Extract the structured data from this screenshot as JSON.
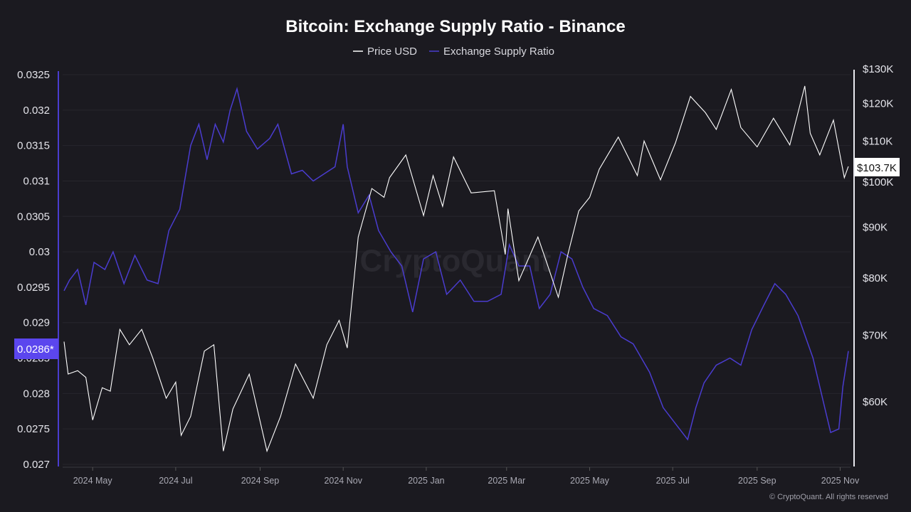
{
  "chart_data": {
    "type": "line",
    "title": "Bitcoin: Exchange Supply Ratio - Binance",
    "watermark": "CryptoQuant",
    "footer": "© CryptoQuant. All rights reserved",
    "legend_position": "top-center",
    "grid": true,
    "colors": {
      "price": "#ffffff",
      "ratio": "#4a3ccf",
      "ratio_badge": "#5b46ee",
      "background": "#1b1a20"
    },
    "x_range": [
      "2024-04-10",
      "2025-11-07"
    ],
    "x_ticks": [
      {
        "date": "2024-05-01",
        "label": "2024 May"
      },
      {
        "date": "2024-07-01",
        "label": "2024 Jul"
      },
      {
        "date": "2024-09-01",
        "label": "2024 Sep"
      },
      {
        "date": "2024-11-01",
        "label": "2024 Nov"
      },
      {
        "date": "2025-01-01",
        "label": "2025 Jan"
      },
      {
        "date": "2025-03-01",
        "label": "2025 Mar"
      },
      {
        "date": "2025-05-01",
        "label": "2025 May"
      },
      {
        "date": "2025-07-01",
        "label": "2025 Jul"
      },
      {
        "date": "2025-09-01",
        "label": "2025 Sep"
      },
      {
        "date": "2025-11-01",
        "label": "2025 Nov"
      }
    ],
    "left_axis": {
      "scale": "linear",
      "ylim": [
        0.027,
        0.0325
      ],
      "ticks": [
        {
          "v": 0.0325,
          "label": "0.0325"
        },
        {
          "v": 0.032,
          "label": "0.032"
        },
        {
          "v": 0.0315,
          "label": "0.0315"
        },
        {
          "v": 0.031,
          "label": "0.031"
        },
        {
          "v": 0.0305,
          "label": "0.0305"
        },
        {
          "v": 0.03,
          "label": "0.03"
        },
        {
          "v": 0.0295,
          "label": "0.0295"
        },
        {
          "v": 0.029,
          "label": "0.029"
        },
        {
          "v": 0.0285,
          "label": "0.0285"
        },
        {
          "v": 0.028,
          "label": "0.028"
        },
        {
          "v": 0.0275,
          "label": "0.0275"
        },
        {
          "v": 0.027,
          "label": "0.027"
        }
      ],
      "current_label": "0.0286*",
      "current_value": 0.0286
    },
    "right_axis": {
      "scale": "log",
      "ylim": [
        51500,
        130000
      ],
      "ticks": [
        {
          "v": 130000,
          "label": "$130K"
        },
        {
          "v": 120000,
          "label": "$120K"
        },
        {
          "v": 110000,
          "label": "$110K"
        },
        {
          "v": 100000,
          "label": "$100K"
        },
        {
          "v": 90000,
          "label": "$90K"
        },
        {
          "v": 80000,
          "label": "$80K"
        },
        {
          "v": 70000,
          "label": "$70K"
        },
        {
          "v": 60000,
          "label": "$60K"
        }
      ],
      "current_label": "$103.7K",
      "current_value": 103700
    },
    "series": [
      {
        "name": "Price USD",
        "axis": "right",
        "points": [
          [
            "2024-04-10",
            69000
          ],
          [
            "2024-04-13",
            64000
          ],
          [
            "2024-04-20",
            64500
          ],
          [
            "2024-04-26",
            63500
          ],
          [
            "2024-05-01",
            57500
          ],
          [
            "2024-05-08",
            62000
          ],
          [
            "2024-05-14",
            61500
          ],
          [
            "2024-05-21",
            71000
          ],
          [
            "2024-05-28",
            68500
          ],
          [
            "2024-06-06",
            71000
          ],
          [
            "2024-06-14",
            66500
          ],
          [
            "2024-06-24",
            60500
          ],
          [
            "2024-07-01",
            62800
          ],
          [
            "2024-07-05",
            55500
          ],
          [
            "2024-07-12",
            58000
          ],
          [
            "2024-07-22",
            67500
          ],
          [
            "2024-07-29",
            68500
          ],
          [
            "2024-08-05",
            53500
          ],
          [
            "2024-08-12",
            59000
          ],
          [
            "2024-08-24",
            64000
          ],
          [
            "2024-09-06",
            53500
          ],
          [
            "2024-09-16",
            58000
          ],
          [
            "2024-09-27",
            65500
          ],
          [
            "2024-10-10",
            60500
          ],
          [
            "2024-10-20",
            68500
          ],
          [
            "2024-10-29",
            72500
          ],
          [
            "2024-11-04",
            68000
          ],
          [
            "2024-11-12",
            88000
          ],
          [
            "2024-11-22",
            98500
          ],
          [
            "2024-12-01",
            96500
          ],
          [
            "2024-12-05",
            101000
          ],
          [
            "2024-12-17",
            106500
          ],
          [
            "2024-12-30",
            92500
          ],
          [
            "2025-01-06",
            101500
          ],
          [
            "2025-01-13",
            94500
          ],
          [
            "2025-01-21",
            106000
          ],
          [
            "2025-02-03",
            97500
          ],
          [
            "2025-02-20",
            98000
          ],
          [
            "2025-02-28",
            84500
          ],
          [
            "2025-03-02",
            94000
          ],
          [
            "2025-03-10",
            79500
          ],
          [
            "2025-03-24",
            88000
          ],
          [
            "2025-03-31",
            82500
          ],
          [
            "2025-04-08",
            76500
          ],
          [
            "2025-04-15",
            84500
          ],
          [
            "2025-04-23",
            93500
          ],
          [
            "2025-05-01",
            96500
          ],
          [
            "2025-05-08",
            103000
          ],
          [
            "2025-05-22",
            111000
          ],
          [
            "2025-06-05",
            101500
          ],
          [
            "2025-06-10",
            110000
          ],
          [
            "2025-06-22",
            100500
          ],
          [
            "2025-07-03",
            109500
          ],
          [
            "2025-07-14",
            122000
          ],
          [
            "2025-07-25",
            117500
          ],
          [
            "2025-08-02",
            113000
          ],
          [
            "2025-08-13",
            124000
          ],
          [
            "2025-08-20",
            113500
          ],
          [
            "2025-09-01",
            108500
          ],
          [
            "2025-09-13",
            116000
          ],
          [
            "2025-09-25",
            109000
          ],
          [
            "2025-10-06",
            125000
          ],
          [
            "2025-10-10",
            112000
          ],
          [
            "2025-10-17",
            106500
          ],
          [
            "2025-10-27",
            115500
          ],
          [
            "2025-11-04",
            101000
          ],
          [
            "2025-11-07",
            103700
          ]
        ]
      },
      {
        "name": "Exchange Supply Ratio",
        "axis": "left",
        "points": [
          [
            "2024-04-10",
            0.02945
          ],
          [
            "2024-04-14",
            0.0296
          ],
          [
            "2024-04-20",
            0.02975
          ],
          [
            "2024-04-26",
            0.02925
          ],
          [
            "2024-05-02",
            0.02985
          ],
          [
            "2024-05-10",
            0.02975
          ],
          [
            "2024-05-16",
            0.03
          ],
          [
            "2024-05-24",
            0.02955
          ],
          [
            "2024-06-01",
            0.02995
          ],
          [
            "2024-06-10",
            0.0296
          ],
          [
            "2024-06-18",
            0.02955
          ],
          [
            "2024-06-26",
            0.0303
          ],
          [
            "2024-07-04",
            0.0306
          ],
          [
            "2024-07-12",
            0.0315
          ],
          [
            "2024-07-18",
            0.0318
          ],
          [
            "2024-07-24",
            0.0313
          ],
          [
            "2024-07-30",
            0.0318
          ],
          [
            "2024-08-05",
            0.03155
          ],
          [
            "2024-08-10",
            0.032
          ],
          [
            "2024-08-15",
            0.0323
          ],
          [
            "2024-08-22",
            0.0317
          ],
          [
            "2024-08-30",
            0.03145
          ],
          [
            "2024-09-08",
            0.0316
          ],
          [
            "2024-09-14",
            0.0318
          ],
          [
            "2024-09-24",
            0.0311
          ],
          [
            "2024-10-02",
            0.03115
          ],
          [
            "2024-10-10",
            0.031
          ],
          [
            "2024-10-18",
            0.0311
          ],
          [
            "2024-10-26",
            0.0312
          ],
          [
            "2024-11-01",
            0.0318
          ],
          [
            "2024-11-04",
            0.0312
          ],
          [
            "2024-11-12",
            0.03055
          ],
          [
            "2024-11-20",
            0.0308
          ],
          [
            "2024-11-27",
            0.0303
          ],
          [
            "2024-12-06",
            0.03
          ],
          [
            "2024-12-14",
            0.0298
          ],
          [
            "2024-12-22",
            0.02915
          ],
          [
            "2024-12-30",
            0.0299
          ],
          [
            "2025-01-08",
            0.03
          ],
          [
            "2025-01-16",
            0.0294
          ],
          [
            "2025-01-26",
            0.0296
          ],
          [
            "2025-02-05",
            0.0293
          ],
          [
            "2025-02-15",
            0.0293
          ],
          [
            "2025-02-25",
            0.0294
          ],
          [
            "2025-03-03",
            0.0301
          ],
          [
            "2025-03-10",
            0.0298
          ],
          [
            "2025-03-18",
            0.0298
          ],
          [
            "2025-03-25",
            0.0292
          ],
          [
            "2025-04-02",
            0.0294
          ],
          [
            "2025-04-10",
            0.03
          ],
          [
            "2025-04-18",
            0.0299
          ],
          [
            "2025-04-26",
            0.0295
          ],
          [
            "2025-05-04",
            0.0292
          ],
          [
            "2025-05-14",
            0.0291
          ],
          [
            "2025-05-24",
            0.0288
          ],
          [
            "2025-06-02",
            0.0287
          ],
          [
            "2025-06-14",
            0.0283
          ],
          [
            "2025-06-24",
            0.0278
          ],
          [
            "2025-07-04",
            0.02755
          ],
          [
            "2025-07-12",
            0.02735
          ],
          [
            "2025-07-18",
            0.0278
          ],
          [
            "2025-07-24",
            0.02815
          ],
          [
            "2025-08-02",
            0.0284
          ],
          [
            "2025-08-12",
            0.0285
          ],
          [
            "2025-08-20",
            0.0284
          ],
          [
            "2025-08-28",
            0.0289
          ],
          [
            "2025-09-06",
            0.02925
          ],
          [
            "2025-09-14",
            0.02955
          ],
          [
            "2025-09-22",
            0.0294
          ],
          [
            "2025-10-01",
            0.0291
          ],
          [
            "2025-10-12",
            0.0285
          ],
          [
            "2025-10-20",
            0.02785
          ],
          [
            "2025-10-25",
            0.02745
          ],
          [
            "2025-10-31",
            0.0275
          ],
          [
            "2025-11-03",
            0.0281
          ],
          [
            "2025-11-07",
            0.0286
          ]
        ]
      }
    ]
  }
}
